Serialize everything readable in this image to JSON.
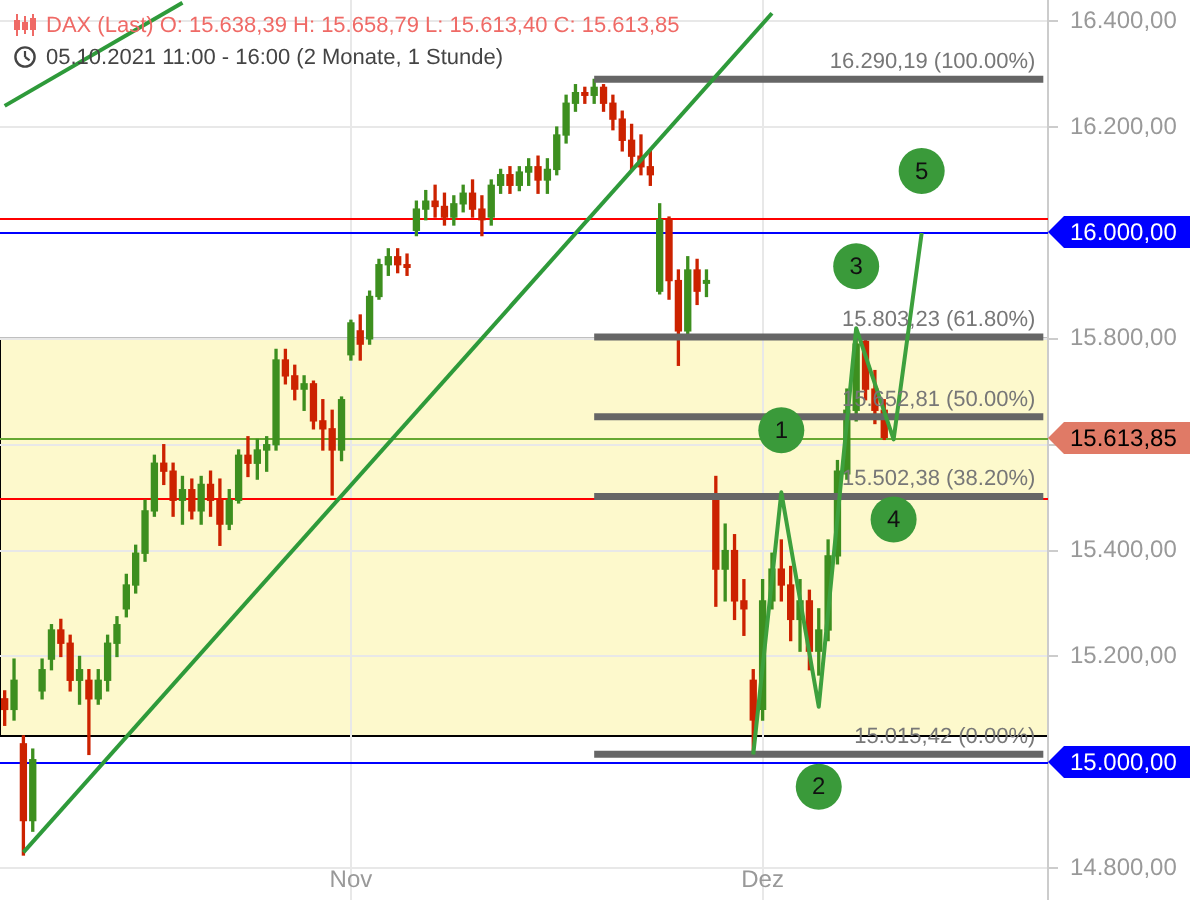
{
  "chart_data": {
    "type": "candlestick",
    "title": "DAX (Last) O: 15.638,39 H: 15.658,79 L: 15.613,40 C: 15.613,85",
    "subtitle": "05.10.2021 11:00 - 16:00 (2 Monate, 1 Stunde)",
    "annotations": [
      "1",
      "2",
      "3",
      "4",
      "5"
    ],
    "categories": [
      null,
      null,
      null,
      null,
      null,
      null,
      null,
      null,
      null,
      null,
      null,
      null,
      null,
      null,
      null,
      null,
      null,
      null,
      null,
      null,
      null,
      null,
      null,
      null,
      null,
      null,
      null,
      null,
      null,
      null,
      null,
      null,
      null,
      null,
      null,
      null,
      null,
      "Nov",
      null,
      null,
      null,
      null,
      null,
      null,
      null,
      null,
      null,
      null,
      null,
      null,
      null,
      null,
      null,
      null,
      null,
      null,
      null,
      null,
      null,
      null,
      null,
      null,
      null,
      null,
      null,
      null,
      null,
      null,
      null,
      null,
      null,
      null,
      null,
      null,
      null,
      null,
      null,
      null,
      null,
      null,
      null,
      "Dez",
      null,
      null,
      null,
      null,
      null,
      null,
      null,
      null,
      null,
      null,
      null,
      null,
      null,
      null,
      null,
      null,
      null,
      null,
      null,
      null,
      null,
      null,
      null,
      null,
      null,
      null,
      null,
      null,
      null,
      null
    ],
    "ylim": [
      14740,
      16440
    ],
    "yticks": [
      {
        "value": 14800,
        "label": "14.800,00"
      },
      {
        "value": 15200,
        "label": "15.200,00"
      },
      {
        "value": 15400,
        "label": "15.400,00"
      },
      {
        "value": 15600,
        "label": null
      },
      {
        "value": 15800,
        "label": "15.800,00"
      },
      {
        "value": 16200,
        "label": "16.200,00"
      },
      {
        "value": 16400,
        "label": "16.400,00"
      }
    ],
    "grid": true,
    "bands": [
      {
        "axis": "y",
        "from": 15050,
        "to": 15800,
        "color": "#fdf9cc"
      }
    ],
    "ref_lines": [
      {
        "axis": "y",
        "value": 16030,
        "color": "#ff0000"
      },
      {
        "axis": "y",
        "value": 16000,
        "label": "16.000,00",
        "color": "#0000ff"
      },
      {
        "axis": "y",
        "value": 15613.85,
        "color": "#66a832"
      },
      {
        "axis": "y",
        "value": 15500,
        "color": "#ff0000"
      },
      {
        "axis": "y",
        "value": 15000,
        "label": "15.000,00",
        "color": "#0000ff"
      }
    ],
    "series": [
      {
        "ohlc": [
          [
            15120,
            15135,
            15070,
            15100
          ],
          [
            15100,
            15195,
            15080,
            15155
          ],
          [
            15035,
            15050,
            14825,
            14890
          ],
          [
            14890,
            15025,
            14870,
            15005
          ],
          [
            15135,
            15195,
            15120,
            15175
          ],
          [
            15195,
            15260,
            15175,
            15250
          ],
          [
            15250,
            15270,
            15200,
            15225
          ],
          [
            15225,
            15240,
            15135,
            15155
          ],
          [
            15155,
            15200,
            15110,
            15175
          ],
          [
            15155,
            15175,
            15015,
            15120
          ],
          [
            15120,
            15175,
            15110,
            15155
          ],
          [
            15155,
            15240,
            15135,
            15225
          ],
          [
            15225,
            15275,
            15200,
            15260
          ],
          [
            15290,
            15355,
            15275,
            15335
          ],
          [
            15335,
            15410,
            15320,
            15395
          ],
          [
            15395,
            15495,
            15380,
            15475
          ],
          [
            15475,
            15580,
            15465,
            15565
          ],
          [
            15565,
            15600,
            15525,
            15550
          ],
          [
            15550,
            15565,
            15465,
            15495
          ],
          [
            15495,
            15540,
            15450,
            15515
          ],
          [
            15515,
            15535,
            15460,
            15475
          ],
          [
            15475,
            15540,
            15450,
            15525
          ],
          [
            15525,
            15550,
            15465,
            15495
          ],
          [
            15495,
            15535,
            15410,
            15450
          ],
          [
            15450,
            15515,
            15440,
            15495
          ],
          [
            15495,
            15590,
            15490,
            15580
          ],
          [
            15580,
            15615,
            15540,
            15565
          ],
          [
            15565,
            15610,
            15535,
            15590
          ],
          [
            15590,
            15615,
            15550,
            15600
          ],
          [
            15600,
            15780,
            15590,
            15760
          ],
          [
            15760,
            15780,
            15715,
            15730
          ],
          [
            15730,
            15750,
            15685,
            15705
          ],
          [
            15705,
            15730,
            15665,
            15715
          ],
          [
            15715,
            15720,
            15630,
            15645
          ],
          [
            15645,
            15685,
            15590,
            15630
          ],
          [
            15630,
            15665,
            15505,
            15590
          ],
          [
            15590,
            15690,
            15570,
            15685
          ],
          [
            15770,
            15835,
            15760,
            15830
          ],
          [
            15815,
            15845,
            15760,
            15790
          ],
          [
            15800,
            15890,
            15790,
            15880
          ],
          [
            15880,
            15950,
            15875,
            15940
          ],
          [
            15940,
            15970,
            15920,
            15955
          ],
          [
            15955,
            15970,
            15925,
            15940
          ],
          [
            15940,
            15960,
            15920,
            15935
          ],
          [
            16005,
            16060,
            15995,
            16045
          ],
          [
            16045,
            16080,
            16025,
            16060
          ],
          [
            16060,
            16090,
            16030,
            16050
          ],
          [
            16050,
            16075,
            16015,
            16030
          ],
          [
            16030,
            16070,
            16015,
            16055
          ],
          [
            16055,
            16090,
            16040,
            16075
          ],
          [
            16075,
            16100,
            16030,
            16045
          ],
          [
            16045,
            16070,
            15995,
            16025
          ],
          [
            16030,
            16100,
            16015,
            16090
          ],
          [
            16090,
            16120,
            16075,
            16110
          ],
          [
            16110,
            16125,
            16075,
            16090
          ],
          [
            16090,
            16125,
            16080,
            16115
          ],
          [
            16115,
            16140,
            16090,
            16125
          ],
          [
            16125,
            16145,
            16075,
            16100
          ],
          [
            16100,
            16140,
            16075,
            16120
          ],
          [
            16120,
            16200,
            16110,
            16185
          ],
          [
            16185,
            16260,
            16170,
            16245
          ],
          [
            16245,
            16280,
            16230,
            16265
          ],
          [
            16265,
            16275,
            16245,
            16260
          ],
          [
            16260,
            16290,
            16245,
            16275
          ],
          [
            16275,
            16280,
            16230,
            16245
          ],
          [
            16245,
            16260,
            16195,
            16215
          ],
          [
            16215,
            16230,
            16155,
            16175
          ],
          [
            16175,
            16205,
            16120,
            16145
          ],
          [
            16145,
            16185,
            16110,
            16125
          ],
          [
            16125,
            16155,
            16090,
            16110
          ],
          [
            15890,
            16055,
            15885,
            16025
          ],
          [
            16025,
            16030,
            15875,
            15910
          ],
          [
            15910,
            15930,
            15750,
            15815
          ],
          [
            15815,
            15955,
            15800,
            15930
          ],
          [
            15930,
            15950,
            15865,
            15890
          ],
          [
            15905,
            15930,
            15880,
            15910
          ],
          [
            15495,
            15540,
            15295,
            15365
          ],
          [
            15365,
            15450,
            15305,
            15400
          ],
          [
            15400,
            15430,
            15270,
            15305
          ],
          [
            15305,
            15345,
            15240,
            15290
          ],
          [
            15155,
            15175,
            15015,
            15080
          ],
          [
            15100,
            15345,
            15080,
            15305
          ],
          [
            15305,
            15395,
            15290,
            15365
          ],
          [
            15365,
            15420,
            15305,
            15335
          ],
          [
            15335,
            15370,
            15230,
            15270
          ],
          [
            15270,
            15345,
            15210,
            15305
          ],
          [
            15305,
            15325,
            15175,
            15210
          ],
          [
            15210,
            15290,
            15165,
            15250
          ],
          [
            15250,
            15420,
            15230,
            15390
          ],
          [
            15390,
            15570,
            15375,
            15550
          ],
          [
            15545,
            15705,
            15535,
            15665
          ],
          [
            15665,
            15805,
            15645,
            15790
          ],
          [
            15795,
            15800,
            15685,
            15705
          ],
          [
            15705,
            15740,
            15640,
            15665
          ],
          [
            15665,
            15685,
            15610,
            15613.85
          ],
          null,
          null,
          null,
          null,
          null,
          null,
          null,
          null,
          null,
          null,
          null,
          null,
          null,
          null,
          null,
          null,
          null
        ],
        "colors": [
          "#cc2200",
          "#3d8f1f",
          "#cc2200",
          "#3d8f1f",
          "#3d8f1f",
          "#3d8f1f",
          "#cc2200",
          "#cc2200",
          "#3d8f1f",
          "#cc2200",
          "#3d8f1f",
          "#3d8f1f",
          "#3d8f1f",
          "#3d8f1f",
          "#3d8f1f",
          "#3d8f1f",
          "#3d8f1f",
          "#cc2200",
          "#cc2200",
          "#3d8f1f",
          "#cc2200",
          "#3d8f1f",
          "#cc2200",
          "#cc2200",
          "#3d8f1f",
          "#3d8f1f",
          "#cc2200",
          "#3d8f1f",
          "#3d8f1f",
          "#3d8f1f",
          "#cc2200",
          "#cc2200",
          "#3d8f1f",
          "#cc2200",
          "#cc2200",
          "#cc2200",
          "#3d8f1f",
          "#3d8f1f",
          "#cc2200",
          "#3d8f1f",
          "#3d8f1f",
          "#3d8f1f",
          "#cc2200",
          "#cc2200",
          "#3d8f1f",
          "#3d8f1f",
          "#cc2200",
          "#cc2200",
          "#3d8f1f",
          "#3d8f1f",
          "#cc2200",
          "#cc2200",
          "#3d8f1f",
          "#3d8f1f",
          "#cc2200",
          "#3d8f1f",
          "#3d8f1f",
          "#cc2200",
          "#3d8f1f",
          "#3d8f1f",
          "#3d8f1f",
          "#3d8f1f",
          "#cc2200",
          "#3d8f1f",
          "#cc2200",
          "#cc2200",
          "#cc2200",
          "#cc2200",
          "#cc2200",
          "#cc2200",
          "#3d8f1f",
          "#cc2200",
          "#cc2200",
          "#3d8f1f",
          "#cc2200",
          "#3d8f1f",
          "#cc2200",
          "#3d8f1f",
          "#cc2200",
          "#cc2200",
          "#cc2200",
          "#3d8f1f",
          "#3d8f1f",
          "#cc2200",
          "#cc2200",
          "#3d8f1f",
          "#cc2200",
          "#3d8f1f",
          "#3d8f1f",
          "#3d8f1f",
          "#3d8f1f",
          "#3d8f1f",
          "#cc2200",
          "#cc2200",
          "#cc2200",
          null,
          null,
          null,
          null,
          null,
          null,
          null,
          null,
          null,
          null,
          null,
          null,
          null,
          null,
          null,
          null,
          null
        ],
        "value_labels": [
          null,
          null,
          null,
          null,
          null,
          null,
          null,
          null,
          null,
          null,
          null,
          null,
          null,
          null,
          null,
          null,
          null,
          null,
          null,
          null,
          null,
          null,
          null,
          null,
          null,
          null,
          null,
          null,
          null,
          null,
          null,
          null,
          null,
          null,
          null,
          null,
          null,
          null,
          null,
          null,
          null,
          null,
          null,
          null,
          null,
          null,
          null,
          null,
          null,
          null,
          null,
          null,
          null,
          null,
          null,
          null,
          null,
          null,
          null,
          null,
          null,
          null,
          null,
          null,
          null,
          null,
          null,
          null,
          null,
          null,
          null,
          null,
          null,
          null,
          null,
          null,
          null,
          null,
          null,
          null,
          null,
          null,
          null,
          null,
          null,
          null,
          null,
          null,
          null,
          null,
          null,
          null,
          null,
          null,
          "15.613,85",
          null,
          null,
          null,
          null,
          null,
          null,
          null,
          null,
          null,
          null,
          null,
          null,
          null,
          null,
          null,
          null,
          null
        ]
      },
      {
        "type": "line",
        "name": "16.290,19 (100.00%)",
        "color": "#666666",
        "values": [
          null,
          null,
          null,
          null,
          null,
          null,
          null,
          null,
          null,
          null,
          null,
          null,
          null,
          null,
          null,
          null,
          null,
          null,
          null,
          null,
          null,
          null,
          null,
          null,
          null,
          null,
          null,
          null,
          null,
          null,
          null,
          null,
          null,
          null,
          null,
          null,
          null,
          null,
          null,
          null,
          null,
          null,
          null,
          null,
          null,
          null,
          null,
          null,
          null,
          null,
          null,
          null,
          null,
          null,
          null,
          null,
          null,
          null,
          null,
          null,
          null,
          null,
          null,
          16290.19,
          null,
          null,
          null,
          null,
          null,
          null,
          null,
          null,
          null,
          null,
          null,
          null,
          null,
          null,
          null,
          null,
          null,
          null,
          null,
          null,
          null,
          null,
          null,
          null,
          null,
          null,
          null,
          null,
          null,
          null,
          null,
          null,
          null,
          null,
          null,
          null,
          null,
          null,
          null,
          null,
          null,
          null,
          null,
          null,
          null,
          null,
          null,
          16290.19
        ]
      },
      {
        "type": "line",
        "name": "15.803,23 (61.80%)",
        "color": "#666666",
        "values": [
          null,
          null,
          null,
          null,
          null,
          null,
          null,
          null,
          null,
          null,
          null,
          null,
          null,
          null,
          null,
          null,
          null,
          null,
          null,
          null,
          null,
          null,
          null,
          null,
          null,
          null,
          null,
          null,
          null,
          null,
          null,
          null,
          null,
          null,
          null,
          null,
          null,
          null,
          null,
          null,
          null,
          null,
          null,
          null,
          null,
          null,
          null,
          null,
          null,
          null,
          null,
          null,
          null,
          null,
          null,
          null,
          null,
          null,
          null,
          null,
          null,
          null,
          null,
          15803.23,
          null,
          null,
          null,
          null,
          null,
          null,
          null,
          null,
          null,
          null,
          null,
          null,
          null,
          null,
          null,
          null,
          null,
          null,
          null,
          null,
          null,
          null,
          null,
          null,
          null,
          null,
          null,
          null,
          null,
          null,
          null,
          null,
          null,
          null,
          null,
          null,
          null,
          null,
          null,
          null,
          null,
          null,
          null,
          null,
          null,
          null,
          null,
          15803.23
        ]
      },
      {
        "type": "line",
        "name": "15.652,81 (50.00%)",
        "color": "#666666",
        "values": [
          null,
          null,
          null,
          null,
          null,
          null,
          null,
          null,
          null,
          null,
          null,
          null,
          null,
          null,
          null,
          null,
          null,
          null,
          null,
          null,
          null,
          null,
          null,
          null,
          null,
          null,
          null,
          null,
          null,
          null,
          null,
          null,
          null,
          null,
          null,
          null,
          null,
          null,
          null,
          null,
          null,
          null,
          null,
          null,
          null,
          null,
          null,
          null,
          null,
          null,
          null,
          null,
          null,
          null,
          null,
          null,
          null,
          null,
          null,
          null,
          null,
          null,
          null,
          15652.81,
          null,
          null,
          null,
          null,
          null,
          null,
          null,
          null,
          null,
          null,
          null,
          null,
          null,
          null,
          null,
          null,
          null,
          null,
          null,
          null,
          null,
          null,
          null,
          null,
          null,
          null,
          null,
          null,
          null,
          null,
          null,
          null,
          null,
          null,
          null,
          null,
          null,
          null,
          null,
          null,
          null,
          null,
          null,
          null,
          null,
          null,
          null,
          15652.81
        ]
      },
      {
        "type": "line",
        "name": "15.502,38 (38.20%)",
        "color": "#666666",
        "values": [
          null,
          null,
          null,
          null,
          null,
          null,
          null,
          null,
          null,
          null,
          null,
          null,
          null,
          null,
          null,
          null,
          null,
          null,
          null,
          null,
          null,
          null,
          null,
          null,
          null,
          null,
          null,
          null,
          null,
          null,
          null,
          null,
          null,
          null,
          null,
          null,
          null,
          null,
          null,
          null,
          null,
          null,
          null,
          null,
          null,
          null,
          null,
          null,
          null,
          null,
          null,
          null,
          null,
          null,
          null,
          null,
          null,
          null,
          null,
          null,
          null,
          null,
          null,
          15502.38,
          null,
          null,
          null,
          null,
          null,
          null,
          null,
          null,
          null,
          null,
          null,
          null,
          null,
          null,
          null,
          null,
          null,
          null,
          null,
          null,
          null,
          null,
          null,
          null,
          null,
          null,
          null,
          null,
          null,
          null,
          null,
          null,
          null,
          null,
          null,
          null,
          null,
          null,
          null,
          null,
          null,
          null,
          null,
          null,
          null,
          null,
          null,
          15502.38
        ]
      },
      {
        "type": "line",
        "name": "15.015,42 (0.00%)",
        "color": "#666666",
        "values": [
          null,
          null,
          null,
          null,
          null,
          null,
          null,
          null,
          null,
          null,
          null,
          null,
          null,
          null,
          null,
          null,
          null,
          null,
          null,
          null,
          null,
          null,
          null,
          null,
          null,
          null,
          null,
          null,
          null,
          null,
          null,
          null,
          null,
          null,
          null,
          null,
          null,
          null,
          null,
          null,
          null,
          null,
          null,
          null,
          null,
          null,
          null,
          null,
          null,
          null,
          null,
          null,
          null,
          null,
          null,
          null,
          null,
          null,
          null,
          null,
          null,
          null,
          null,
          15015.42,
          null,
          null,
          null,
          null,
          null,
          null,
          null,
          null,
          null,
          null,
          null,
          null,
          null,
          null,
          null,
          null,
          null,
          null,
          null,
          null,
          null,
          null,
          null,
          null,
          null,
          null,
          null,
          null,
          null,
          null,
          null,
          null,
          null,
          null,
          null,
          null,
          null,
          null,
          null,
          null,
          null,
          null,
          null,
          null,
          null,
          null,
          null,
          15015.42
        ]
      },
      {
        "type": "line",
        "color": "#2e9a3a",
        "values": [
          null,
          null,
          14830,
          null,
          null,
          null,
          null,
          null,
          null,
          null,
          null,
          null,
          null,
          null,
          null,
          null,
          null,
          null,
          null,
          null,
          null,
          null,
          null,
          null,
          null,
          null,
          null,
          null,
          null,
          null,
          null,
          null,
          null,
          null,
          null,
          null,
          null,
          null,
          null,
          null,
          null,
          null,
          null,
          null,
          null,
          null,
          null,
          null,
          null,
          null,
          null,
          null,
          null,
          null,
          null,
          null,
          null,
          null,
          null,
          null,
          null,
          null,
          null,
          null,
          null,
          null,
          null,
          null,
          null,
          null,
          null,
          null,
          null,
          null,
          null,
          null,
          null,
          null,
          null,
          null,
          null,
          null,
          16415,
          null,
          null,
          null,
          null,
          null,
          null,
          null,
          null,
          null,
          null,
          null,
          null,
          null,
          null,
          null,
          null,
          null,
          null,
          null,
          null,
          null,
          null,
          null,
          null,
          null,
          null,
          null,
          null,
          null
        ]
      },
      {
        "type": "line",
        "color": "#2e9a3a",
        "values": [
          16240,
          null,
          null,
          null,
          null,
          null,
          null,
          null,
          null,
          null,
          null,
          null,
          null,
          null,
          null,
          null,
          null,
          null,
          null,
          16435,
          null,
          null,
          null,
          null,
          null,
          null,
          null,
          null,
          null,
          null,
          null,
          null,
          null,
          null,
          null,
          null,
          null,
          null,
          null,
          null,
          null,
          null,
          null,
          null,
          null,
          null,
          null,
          null,
          null,
          null,
          null,
          null,
          null,
          null,
          null,
          null,
          null,
          null,
          null,
          null,
          null,
          null,
          null,
          null,
          null,
          null,
          null,
          null,
          null,
          null,
          null,
          null,
          null,
          null,
          null,
          null,
          null,
          null,
          null,
          null,
          null,
          null,
          null,
          null,
          null,
          null,
          null,
          null,
          null,
          null,
          null,
          null,
          null,
          null,
          null,
          null,
          null,
          null,
          null,
          null,
          null,
          null,
          null,
          null,
          null,
          null,
          null,
          null,
          null,
          null,
          null,
          null
        ]
      },
      {
        "type": "line",
        "color": "#3da03d",
        "values": [
          null,
          null,
          null,
          null,
          null,
          null,
          null,
          null,
          null,
          null,
          null,
          null,
          null,
          null,
          null,
          null,
          null,
          null,
          null,
          null,
          null,
          null,
          null,
          null,
          null,
          null,
          null,
          null,
          null,
          null,
          null,
          null,
          null,
          null,
          null,
          null,
          null,
          null,
          null,
          null,
          null,
          null,
          null,
          null,
          null,
          null,
          null,
          null,
          null,
          null,
          null,
          null,
          null,
          null,
          null,
          null,
          null,
          null,
          null,
          null,
          null,
          null,
          null,
          null,
          null,
          null,
          null,
          null,
          null,
          null,
          null,
          null,
          null,
          null,
          null,
          null,
          null,
          null,
          null,
          null,
          15015,
          null,
          null,
          15510,
          null,
          null,
          null,
          15105,
          null,
          null,
          null,
          15820,
          null,
          null,
          null,
          15610,
          null,
          null,
          16000,
          null,
          null,
          null,
          null,
          null,
          null,
          null,
          null,
          null,
          null,
          null,
          null,
          null
        ]
      }
    ]
  }
}
